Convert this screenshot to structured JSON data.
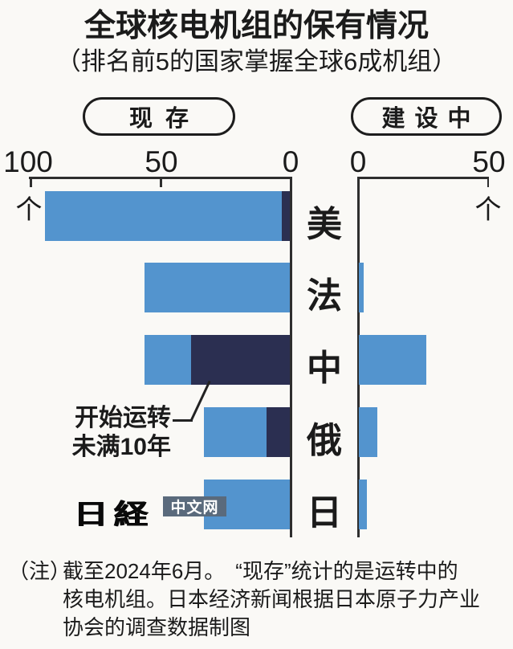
{
  "title": "全球核电机组的保有情况",
  "subtitle": "（排名前5的国家掌握全球6成机组）",
  "legend": {
    "left_label": "现存",
    "right_label": "建设中"
  },
  "axes": {
    "left_ticks": [
      "100",
      "50",
      "0"
    ],
    "right_ticks": [
      "0",
      "50"
    ],
    "unit": "个"
  },
  "chart_data": {
    "type": "bar",
    "orientation": "horizontal",
    "categories": [
      "美",
      "法",
      "中",
      "俄",
      "日"
    ],
    "series": [
      {
        "name": "现存",
        "values": [
          94,
          56,
          56,
          33,
          33
        ]
      },
      {
        "name": "其中开始运转未满10年",
        "values": [
          3,
          0,
          38,
          9,
          0
        ]
      },
      {
        "name": "建设中",
        "values": [
          0,
          2,
          26,
          7,
          3
        ]
      }
    ],
    "panels": [
      {
        "title": "现存",
        "xlim": [
          100,
          0
        ],
        "unit": "个"
      },
      {
        "title": "建设中",
        "xlim": [
          0,
          50
        ],
        "unit": "个"
      }
    ],
    "annotation": "开始运转未满10年",
    "legend_position": "top"
  },
  "annotation": {
    "line1": "开始运转",
    "line2": "未满10年"
  },
  "logo": {
    "brand": "日経",
    "suffix": "中文网"
  },
  "note": {
    "prefix": "（注）",
    "lines": [
      "截至2024年6月。　“现存”统计的是运转中的",
      "核电机组。日本经济新闻根据日本原子力产业",
      "协会的调查数据制图"
    ]
  },
  "colors": {
    "bar_blue": "#5394ce",
    "bar_navy": "#2b2f51",
    "axis": "#2e2e2e",
    "logo_box": "#5a6a7c",
    "background": "#faf9f6"
  }
}
